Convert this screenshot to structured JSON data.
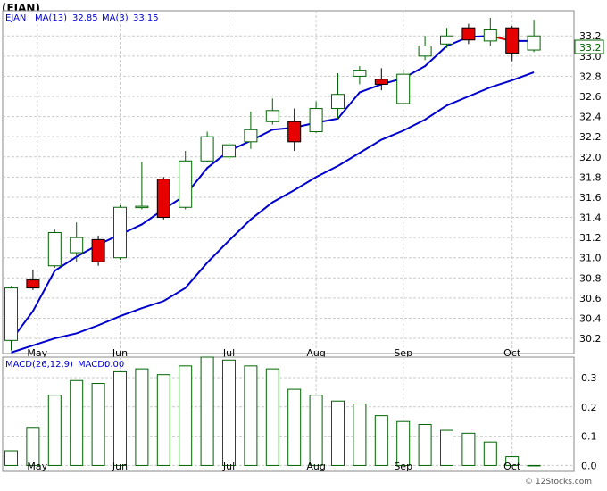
{
  "title": "(EJAN)",
  "legend": {
    "symbol": "EJAN",
    "ma13_label": "MA(13)",
    "ma13_value": "32.85",
    "ma3_label": "MA(3)",
    "ma3_value": "33.15"
  },
  "macd_legend": {
    "label": "MACD(26,12,9)",
    "value_label": "MACD:",
    "value": "0.00"
  },
  "last_price_badge": "33.2",
  "watermark": "© 12Stocks.com",
  "colors": {
    "up_fill": "#ffffff",
    "up_border": "#006400",
    "down_fill": "#e60000",
    "ma13": "#0000cc",
    "ma3_tail": "#e60000",
    "grid": "#cccccc",
    "legend_text": "#0000cc"
  },
  "chart_data": [
    {
      "type": "candlestick",
      "name": "price",
      "ylim": [
        30.05,
        33.45
      ],
      "y_ticks": [
        30.2,
        30.4,
        30.6,
        30.8,
        31.0,
        31.2,
        31.4,
        31.6,
        31.8,
        32.0,
        32.2,
        32.4,
        32.6,
        32.8,
        33.0,
        33.2
      ],
      "x_labels": [
        "May",
        "Jun",
        "Jul",
        "Aug",
        "Sep",
        "Oct"
      ],
      "x_label_positions": [
        1.2,
        5,
        10,
        14,
        18,
        23
      ],
      "grid": true,
      "candles": [
        {
          "o": 30.18,
          "h": 30.72,
          "l": 30.08,
          "c": 30.7
        },
        {
          "o": 30.78,
          "h": 30.88,
          "l": 30.68,
          "c": 30.7
        },
        {
          "o": 30.92,
          "h": 31.28,
          "l": 30.9,
          "c": 31.25
        },
        {
          "o": 31.05,
          "h": 31.35,
          "l": 30.96,
          "c": 31.2
        },
        {
          "o": 31.18,
          "h": 31.22,
          "l": 30.92,
          "c": 30.96
        },
        {
          "o": 31.0,
          "h": 31.52,
          "l": 30.98,
          "c": 31.5
        },
        {
          "o": 31.51,
          "h": 31.95,
          "l": 31.48,
          "c": 31.51
        },
        {
          "o": 31.78,
          "h": 31.8,
          "l": 31.38,
          "c": 31.4
        },
        {
          "o": 31.5,
          "h": 32.06,
          "l": 31.48,
          "c": 31.96
        },
        {
          "o": 31.96,
          "h": 32.25,
          "l": 31.95,
          "c": 32.2
        },
        {
          "o": 32.0,
          "h": 32.14,
          "l": 31.98,
          "c": 32.12
        },
        {
          "o": 32.15,
          "h": 32.45,
          "l": 32.08,
          "c": 32.27
        },
        {
          "o": 32.35,
          "h": 32.58,
          "l": 32.32,
          "c": 32.46
        },
        {
          "o": 32.35,
          "h": 32.48,
          "l": 32.06,
          "c": 32.15
        },
        {
          "o": 32.25,
          "h": 32.55,
          "l": 32.24,
          "c": 32.48
        },
        {
          "o": 32.48,
          "h": 32.83,
          "l": 32.38,
          "c": 32.62
        },
        {
          "o": 32.8,
          "h": 32.9,
          "l": 32.72,
          "c": 32.86
        },
        {
          "o": 32.77,
          "h": 32.88,
          "l": 32.66,
          "c": 32.72
        },
        {
          "o": 32.53,
          "h": 32.87,
          "l": 32.52,
          "c": 32.82
        },
        {
          "o": 33.0,
          "h": 33.2,
          "l": 32.96,
          "c": 33.1
        },
        {
          "o": 33.12,
          "h": 33.28,
          "l": 33.08,
          "c": 33.2
        },
        {
          "o": 33.28,
          "h": 33.32,
          "l": 33.12,
          "c": 33.16
        },
        {
          "o": 33.15,
          "h": 33.38,
          "l": 33.1,
          "c": 33.26
        },
        {
          "o": 33.28,
          "h": 33.3,
          "l": 32.95,
          "c": 33.03
        },
        {
          "o": 33.06,
          "h": 33.36,
          "l": 33.04,
          "c": 33.2
        }
      ],
      "ma13": [
        30.18,
        30.47,
        30.87,
        31.01,
        31.13,
        31.23,
        31.33,
        31.48,
        31.62,
        31.89,
        32.06,
        32.16,
        32.27,
        32.29,
        32.34,
        32.38,
        32.64,
        32.72,
        32.78,
        32.9,
        33.1,
        33.19,
        33.2,
        33.15,
        33.15
      ],
      "ma13_segment_colors": [
        "#0000cc",
        "#0000cc",
        "#0000cc",
        "#0000cc",
        "#0000cc",
        "#0000cc",
        "#0000cc",
        "#0000cc",
        "#0000cc",
        "#0000cc",
        "#0000cc",
        "#0000cc",
        "#0000cc",
        "#0000cc",
        "#0000cc",
        "#0000cc",
        "#0000cc",
        "#0000cc",
        "#0000cc",
        "#0000cc",
        "#0000cc",
        "#0000cc",
        "#e60000",
        "#0000cc"
      ],
      "ma_slow": [
        30.06,
        30.13,
        30.2,
        30.25,
        30.33,
        30.42,
        30.5,
        30.57,
        30.7,
        30.95,
        31.17,
        31.38,
        31.55,
        31.67,
        31.8,
        31.91,
        32.04,
        32.17,
        32.26,
        32.37,
        32.51,
        32.6,
        32.69,
        32.76,
        32.84
      ]
    },
    {
      "type": "bar",
      "name": "macd",
      "ylim": [
        -0.02,
        0.37
      ],
      "y_ticks": [
        0.0,
        0.1,
        0.2,
        0.3
      ],
      "y_tick_labels": [
        "0.0",
        "0.1",
        "0.2",
        "0.3"
      ],
      "x_labels": [
        "May",
        "Jun",
        "Jul",
        "Aug",
        "Sep",
        "Oct"
      ],
      "x_label_positions": [
        1.2,
        5,
        10,
        14,
        18,
        23
      ],
      "values": [
        0.05,
        0.13,
        0.24,
        0.29,
        0.28,
        0.32,
        0.33,
        0.31,
        0.34,
        0.37,
        0.36,
        0.34,
        0.33,
        0.26,
        0.24,
        0.22,
        0.21,
        0.17,
        0.15,
        0.14,
        0.12,
        0.11,
        0.08,
        0.03,
        0.0
      ]
    }
  ]
}
